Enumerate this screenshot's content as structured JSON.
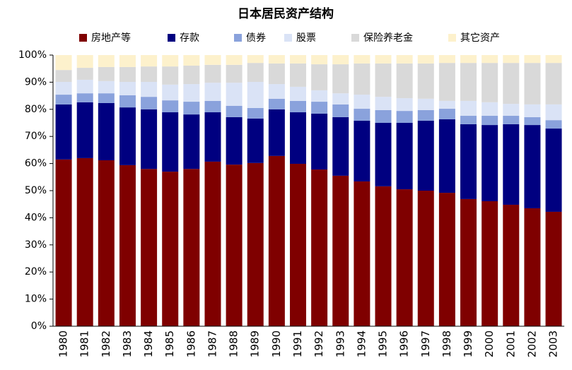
{
  "chart_data": {
    "type": "stacked_bar",
    "title": "日本居民资产结构",
    "categories": [
      "1980",
      "1981",
      "1982",
      "1983",
      "1984",
      "1985",
      "1986",
      "1987",
      "1988",
      "1989",
      "1990",
      "1991",
      "1992",
      "1993",
      "1994",
      "1995",
      "1996",
      "1997",
      "1998",
      "1999",
      "2000",
      "2001",
      "2002",
      "2003"
    ],
    "series": [
      {
        "name": "房地产等",
        "color": "#7f0000",
        "values": [
          61.5,
          62,
          61.2,
          59.4,
          58,
          57,
          58,
          60.7,
          59.6,
          60.2,
          62.8,
          59.9,
          57.8,
          55.5,
          53.4,
          51.6,
          50.5,
          50,
          49.2,
          46.9,
          46.1,
          44.8,
          43.5,
          42.2
        ]
      },
      {
        "name": "存款",
        "color": "#000080",
        "values": [
          20.3,
          20.6,
          21.1,
          21.3,
          22,
          21.9,
          20.1,
          18.2,
          17.5,
          16.4,
          17.2,
          19,
          20.6,
          21.6,
          22.4,
          23.4,
          24.5,
          25.8,
          27.1,
          27.6,
          28.1,
          29.7,
          30.7,
          30.7
        ]
      },
      {
        "name": "债券",
        "color": "#8aa2dc",
        "values": [
          3.6,
          3.3,
          3.6,
          4.5,
          4.6,
          4.4,
          4.7,
          4.2,
          4.2,
          3.9,
          3.9,
          4.2,
          4.4,
          4.7,
          4.4,
          4.7,
          4.4,
          3.9,
          3.9,
          3.1,
          3.4,
          3.1,
          2.9,
          3.1
        ]
      },
      {
        "name": "股票",
        "color": "#dae3f6",
        "values": [
          4.7,
          5,
          4.5,
          4.9,
          5.5,
          5.8,
          6.5,
          6.7,
          8.5,
          9.6,
          5.4,
          5.2,
          4.2,
          4.1,
          5.2,
          4.9,
          4.7,
          4.2,
          2.9,
          5.5,
          5,
          4.4,
          4.7,
          5.8
        ]
      },
      {
        "name": "保险养老金",
        "color": "#d9d9d9",
        "values": [
          4.4,
          4.4,
          5.2,
          5.5,
          5.7,
          6.7,
          6.8,
          6.6,
          6.6,
          7,
          7.6,
          8.6,
          9.6,
          10.7,
          11.5,
          12.3,
          12.8,
          13,
          14,
          14,
          14.5,
          15.1,
          15.3,
          15.3
        ]
      },
      {
        "name": "其它资产",
        "color": "#fdf1cc",
        "values": [
          5.5,
          4.7,
          4.4,
          4.4,
          4.2,
          4.2,
          3.9,
          3.6,
          3.6,
          2.9,
          3.1,
          3.1,
          3.4,
          3.4,
          3.1,
          3.1,
          3.1,
          3.1,
          2.9,
          2.9,
          2.9,
          2.9,
          2.9,
          2.9
        ]
      }
    ],
    "ylim": [
      0,
      100
    ],
    "yticks": [
      {
        "value": 0,
        "label": "0%"
      },
      {
        "value": 10,
        "label": "10%"
      },
      {
        "value": 20,
        "label": "20%"
      },
      {
        "value": 30,
        "label": "30%"
      },
      {
        "value": 40,
        "label": "40%"
      },
      {
        "value": 50,
        "label": "50%"
      },
      {
        "value": 60,
        "label": "60%"
      },
      {
        "value": 70,
        "label": "70%"
      },
      {
        "value": 80,
        "label": "80%"
      },
      {
        "value": 90,
        "label": "90%"
      },
      {
        "value": 100,
        "label": "100%"
      }
    ]
  }
}
